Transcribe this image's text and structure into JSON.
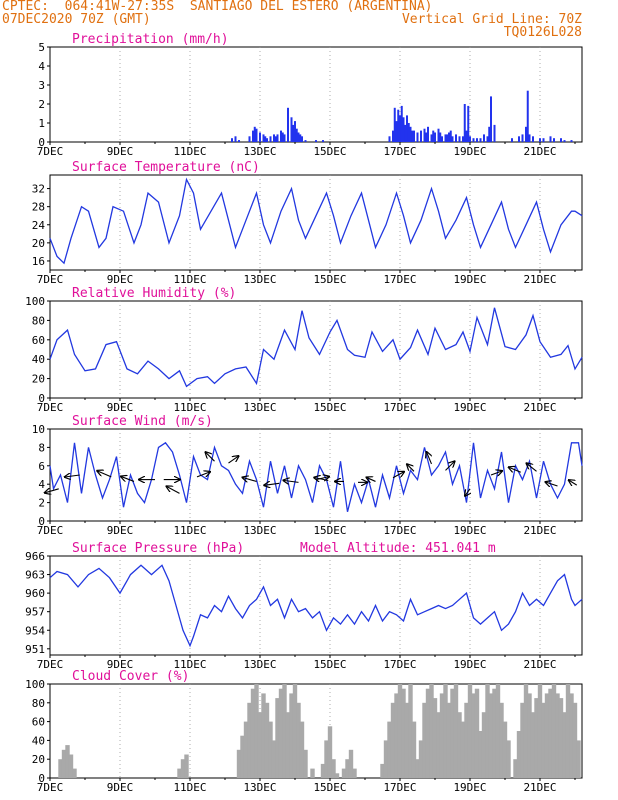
{
  "header": {
    "left_line1": "CPTEC:  064:41W-27:35S  SANTIAGO DEL ESTERO (ARGENTINA)",
    "left_line2": "07DEC2020 70Z (GMT)",
    "right_line2": "Vertical Grid Line: 70Z",
    "right_line3": "TQ0126L028"
  },
  "colors": {
    "header": "#e07010",
    "title": "#e0109a",
    "line": "#2238e0",
    "bar": "#2233ee",
    "cloud": "#a9a9a9",
    "wind_vector": "#000000",
    "grid": "#9a9a9a"
  },
  "chart_data": [
    {
      "id": "precip",
      "type": "bar",
      "title": "Precipitation (mm/h)",
      "x_tick_labels": [
        "7DEC",
        "9DEC",
        "11DEC",
        "13DEC",
        "15DEC",
        "17DEC",
        "19DEC",
        "21DEC"
      ],
      "x_range_days": [
        7.0,
        22.2
      ],
      "ylim": [
        0,
        5
      ],
      "y_ticks": [
        "0",
        "1",
        "2",
        "3",
        "4",
        "5"
      ],
      "x": [
        12.2,
        12.3,
        12.4,
        12.7,
        12.8,
        12.85,
        12.9,
        13.0,
        13.1,
        13.15,
        13.2,
        13.3,
        13.4,
        13.45,
        13.5,
        13.6,
        13.65,
        13.7,
        13.8,
        13.9,
        13.95,
        14.0,
        14.05,
        14.1,
        14.15,
        14.2,
        14.3,
        14.6,
        14.8,
        16.7,
        16.8,
        16.85,
        16.9,
        16.95,
        17.0,
        17.05,
        17.1,
        17.15,
        17.2,
        17.25,
        17.3,
        17.35,
        17.4,
        17.5,
        17.6,
        17.7,
        17.75,
        17.8,
        17.9,
        17.95,
        18.0,
        18.1,
        18.15,
        18.2,
        18.3,
        18.35,
        18.4,
        18.45,
        18.5,
        18.6,
        18.7,
        18.8,
        18.85,
        18.9,
        18.95,
        19.0,
        19.1,
        19.2,
        19.3,
        19.4,
        19.5,
        19.55,
        19.6,
        19.7,
        20.2,
        20.4,
        20.5,
        20.6,
        20.65,
        20.7,
        20.8,
        21.0,
        21.1,
        21.3,
        21.4,
        21.6,
        21.7,
        21.9
      ],
      "values": [
        0.2,
        0.3,
        0.1,
        0.3,
        0.6,
        0.8,
        0.7,
        0.5,
        0.4,
        0.3,
        0.2,
        0.3,
        0.4,
        0.3,
        0.4,
        0.6,
        0.5,
        0.4,
        1.8,
        1.3,
        0.9,
        1.1,
        0.7,
        0.5,
        0.4,
        0.3,
        0.1,
        0.1,
        0.1,
        0.3,
        0.6,
        1.8,
        1.1,
        1.7,
        1.4,
        1.9,
        1.3,
        0.9,
        1.4,
        1.0,
        0.8,
        0.6,
        0.6,
        0.5,
        0.6,
        0.7,
        0.5,
        0.8,
        0.4,
        0.6,
        0.5,
        0.7,
        0.5,
        0.3,
        0.4,
        0.4,
        0.5,
        0.6,
        0.3,
        0.4,
        0.3,
        0.3,
        2.0,
        0.6,
        1.9,
        0.3,
        0.2,
        0.2,
        0.2,
        0.4,
        0.3,
        0.8,
        2.4,
        0.9,
        0.2,
        0.3,
        0.4,
        0.8,
        2.7,
        0.4,
        0.3,
        0.2,
        0.2,
        0.3,
        0.2,
        0.2,
        0.1,
        0.1
      ]
    },
    {
      "id": "temp",
      "type": "line",
      "title": "Surface Temperature (nC)",
      "x_tick_labels": [
        "7DEC",
        "9DEC",
        "11DEC",
        "13DEC",
        "15DEC",
        "17DEC",
        "19DEC",
        "21DEC"
      ],
      "x_range_days": [
        7.0,
        22.2
      ],
      "ylim": [
        14,
        35
      ],
      "y_ticks": [
        "16",
        "20",
        "24",
        "28",
        "32"
      ],
      "x": [
        7.0,
        7.2,
        7.4,
        7.6,
        7.9,
        8.1,
        8.4,
        8.6,
        8.8,
        9.1,
        9.4,
        9.6,
        9.8,
        10.1,
        10.4,
        10.7,
        10.9,
        11.1,
        11.3,
        11.6,
        11.9,
        12.1,
        12.3,
        12.6,
        12.9,
        13.1,
        13.3,
        13.6,
        13.9,
        14.1,
        14.3,
        14.6,
        14.9,
        15.1,
        15.3,
        15.6,
        15.9,
        16.1,
        16.3,
        16.6,
        16.9,
        17.1,
        17.3,
        17.6,
        17.9,
        18.1,
        18.3,
        18.6,
        18.9,
        19.1,
        19.3,
        19.6,
        19.9,
        20.1,
        20.3,
        20.6,
        20.9,
        21.1,
        21.3,
        21.6,
        21.9,
        22.0,
        22.2
      ],
      "values": [
        21,
        17,
        15.5,
        21,
        28,
        27,
        19,
        21,
        28,
        27,
        20,
        24,
        31,
        29,
        20,
        26,
        34,
        31,
        23,
        27,
        31,
        25,
        19,
        25,
        31,
        24,
        20,
        27,
        32,
        25,
        21,
        26,
        31,
        26,
        20,
        26,
        31,
        25,
        19,
        24,
        31,
        26,
        20,
        25,
        32,
        27,
        21,
        25,
        30,
        24,
        19,
        24,
        29,
        23,
        19,
        24,
        29,
        23,
        18,
        24,
        27,
        27,
        26
      ]
    },
    {
      "id": "humidity",
      "type": "line",
      "title": "Relative Humidity (%)",
      "x_tick_labels": [
        "7DEC",
        "9DEC",
        "11DEC",
        "13DEC",
        "15DEC",
        "17DEC",
        "19DEC",
        "21DEC"
      ],
      "x_range_days": [
        7.0,
        22.2
      ],
      "ylim": [
        0,
        100
      ],
      "y_ticks": [
        "0",
        "20",
        "40",
        "60",
        "80",
        "100"
      ],
      "x": [
        7.0,
        7.2,
        7.5,
        7.7,
        8.0,
        8.3,
        8.6,
        8.9,
        9.2,
        9.5,
        9.8,
        10.1,
        10.4,
        10.7,
        10.9,
        11.2,
        11.5,
        11.7,
        12.0,
        12.3,
        12.6,
        12.9,
        13.1,
        13.4,
        13.7,
        14.0,
        14.2,
        14.4,
        14.7,
        15.0,
        15.2,
        15.5,
        15.7,
        16.0,
        16.2,
        16.5,
        16.8,
        17.0,
        17.3,
        17.5,
        17.8,
        18.0,
        18.3,
        18.6,
        18.8,
        19.0,
        19.2,
        19.5,
        19.7,
        20.0,
        20.3,
        20.6,
        20.8,
        21.0,
        21.3,
        21.6,
        21.8,
        22.0,
        22.2
      ],
      "values": [
        40,
        60,
        70,
        45,
        28,
        30,
        55,
        58,
        30,
        25,
        38,
        30,
        20,
        28,
        12,
        20,
        22,
        15,
        25,
        30,
        32,
        15,
        50,
        40,
        70,
        50,
        90,
        62,
        45,
        68,
        80,
        50,
        44,
        42,
        68,
        48,
        60,
        40,
        52,
        70,
        45,
        72,
        50,
        55,
        68,
        48,
        83,
        55,
        93,
        53,
        50,
        65,
        85,
        58,
        42,
        45,
        54,
        30,
        42
      ]
    },
    {
      "id": "wind",
      "type": "line",
      "title": "Surface Wind (m/s)",
      "x_tick_labels": [
        "7DEC",
        "9DEC",
        "11DEC",
        "13DEC",
        "15DEC",
        "17DEC",
        "19DEC",
        "21DEC"
      ],
      "x_range_days": [
        7.0,
        22.2
      ],
      "ylim": [
        0,
        10
      ],
      "y_ticks": [
        "0",
        "2",
        "4",
        "6",
        "8",
        "10"
      ],
      "x": [
        7.0,
        7.1,
        7.3,
        7.5,
        7.7,
        7.9,
        8.1,
        8.3,
        8.5,
        8.7,
        8.9,
        9.1,
        9.3,
        9.5,
        9.7,
        9.9,
        10.1,
        10.3,
        10.5,
        10.7,
        10.9,
        11.1,
        11.3,
        11.5,
        11.7,
        11.9,
        12.1,
        12.3,
        12.5,
        12.7,
        12.9,
        13.1,
        13.3,
        13.5,
        13.7,
        13.9,
        14.1,
        14.3,
        14.5,
        14.7,
        14.9,
        15.1,
        15.3,
        15.5,
        15.7,
        15.9,
        16.1,
        16.3,
        16.5,
        16.7,
        16.9,
        17.1,
        17.3,
        17.5,
        17.7,
        17.9,
        18.1,
        18.3,
        18.5,
        18.7,
        18.9,
        19.1,
        19.3,
        19.5,
        19.7,
        19.9,
        20.1,
        20.3,
        20.5,
        20.7,
        20.9,
        21.1,
        21.3,
        21.5,
        21.7,
        21.9,
        22.1,
        22.2
      ],
      "values": [
        6,
        3.5,
        5,
        2,
        8.5,
        3,
        8,
        5,
        2.5,
        4.5,
        7,
        1.5,
        5,
        3,
        2,
        4.5,
        8,
        8.5,
        7.5,
        5,
        2,
        7,
        5,
        4.5,
        8,
        6,
        5.5,
        4,
        3,
        6.5,
        4.5,
        1.5,
        6.5,
        3,
        6,
        2.5,
        6,
        4.5,
        2,
        6,
        4.5,
        1.5,
        6.5,
        1,
        4,
        2,
        4.5,
        1.5,
        5,
        2.5,
        6,
        3,
        5.5,
        4.5,
        8,
        5,
        6,
        7.5,
        4,
        6,
        2,
        8.5,
        2.5,
        5.5,
        3.5,
        7.5,
        2,
        6,
        4.5,
        6.5,
        2.5,
        6.5,
        4,
        2.5,
        4,
        8.5,
        8.5,
        6
      ],
      "vectors": [
        {
          "x": 7.25,
          "y": 3.5,
          "dx": -14,
          "dy": 4
        },
        {
          "x": 7.85,
          "y": 5.0,
          "dx": -15,
          "dy": 2
        },
        {
          "x": 8.75,
          "y": 4.8,
          "dx": -14,
          "dy": -6
        },
        {
          "x": 9.4,
          "y": 4.3,
          "dx": -13,
          "dy": -5
        },
        {
          "x": 10.0,
          "y": 4.5,
          "dx": -16,
          "dy": 0
        },
        {
          "x": 10.25,
          "y": 4.5,
          "dx": 16,
          "dy": 0
        },
        {
          "x": 10.7,
          "y": 3.0,
          "dx": -13,
          "dy": -7
        },
        {
          "x": 11.2,
          "y": 4.8,
          "dx": 13,
          "dy": -5
        },
        {
          "x": 11.7,
          "y": 6.5,
          "dx": -9,
          "dy": -9
        },
        {
          "x": 12.1,
          "y": 6.3,
          "dx": 10,
          "dy": -7
        },
        {
          "x": 12.9,
          "y": 4.3,
          "dx": -14,
          "dy": -4
        },
        {
          "x": 13.55,
          "y": 4.1,
          "dx": -15,
          "dy": 2
        },
        {
          "x": 14.1,
          "y": 4.2,
          "dx": -15,
          "dy": -2
        },
        {
          "x": 14.6,
          "y": 4.5,
          "dx": 13,
          "dy": -3
        },
        {
          "x": 14.95,
          "y": 4.4,
          "dx": -14,
          "dy": -3
        },
        {
          "x": 15.4,
          "y": 4.3,
          "dx": -9,
          "dy": 0
        },
        {
          "x": 15.8,
          "y": 4.2,
          "dx": 9,
          "dy": 0
        },
        {
          "x": 16.3,
          "y": 4.3,
          "dx": -9,
          "dy": -4
        },
        {
          "x": 16.8,
          "y": 4.7,
          "dx": 11,
          "dy": -6
        },
        {
          "x": 17.4,
          "y": 5.4,
          "dx": -7,
          "dy": -7
        },
        {
          "x": 17.9,
          "y": 6.2,
          "dx": -5,
          "dy": -12
        },
        {
          "x": 18.3,
          "y": 5.5,
          "dx": 9,
          "dy": -9
        },
        {
          "x": 19.0,
          "y": 3.5,
          "dx": -5,
          "dy": 7
        },
        {
          "x": 19.6,
          "y": 5.0,
          "dx": 11,
          "dy": -4
        },
        {
          "x": 20.45,
          "y": 5.3,
          "dx": -12,
          "dy": -5
        },
        {
          "x": 20.9,
          "y": 5.4,
          "dx": -10,
          "dy": -8
        },
        {
          "x": 21.5,
          "y": 3.8,
          "dx": -12,
          "dy": -4
        },
        {
          "x": 22.05,
          "y": 3.9,
          "dx": -8,
          "dy": -5
        }
      ]
    },
    {
      "id": "pressure",
      "type": "line",
      "title": "Surface Pressure (hPa)",
      "subtitle": "Model Altitude: 451.041 m",
      "x_tick_labels": [
        "7DEC",
        "9DEC",
        "11DEC",
        "13DEC",
        "15DEC",
        "17DEC",
        "19DEC",
        "21DEC"
      ],
      "x_range_days": [
        7.0,
        22.2
      ],
      "ylim": [
        950,
        966
      ],
      "y_ticks": [
        "951",
        "954",
        "957",
        "960",
        "963",
        "966"
      ],
      "x": [
        7.0,
        7.2,
        7.5,
        7.8,
        8.1,
        8.4,
        8.7,
        9.0,
        9.3,
        9.6,
        9.9,
        10.2,
        10.4,
        10.6,
        10.8,
        11.0,
        11.1,
        11.3,
        11.5,
        11.7,
        11.9,
        12.1,
        12.3,
        12.5,
        12.7,
        12.9,
        13.1,
        13.3,
        13.5,
        13.7,
        13.9,
        14.1,
        14.3,
        14.5,
        14.7,
        14.9,
        15.1,
        15.3,
        15.5,
        15.7,
        15.9,
        16.1,
        16.3,
        16.5,
        16.7,
        16.9,
        17.1,
        17.3,
        17.5,
        17.7,
        17.9,
        18.1,
        18.3,
        18.5,
        18.7,
        18.9,
        19.1,
        19.3,
        19.5,
        19.7,
        19.9,
        20.1,
        20.3,
        20.5,
        20.7,
        20.9,
        21.1,
        21.3,
        21.5,
        21.7,
        21.9,
        22.0,
        22.2
      ],
      "values": [
        962.5,
        963.5,
        963,
        961,
        963,
        964,
        962.5,
        960,
        963,
        964.5,
        963,
        964.5,
        962,
        958,
        954,
        951.5,
        953,
        956.5,
        956,
        958,
        957,
        959.5,
        957.5,
        956,
        958,
        959,
        961,
        958,
        959,
        956,
        959,
        957,
        957.5,
        956,
        957,
        954,
        956,
        955,
        956.5,
        955,
        957,
        955.5,
        958,
        955.5,
        957,
        956.5,
        955.5,
        959,
        956.5,
        957,
        957.5,
        958,
        957.5,
        958,
        959,
        960,
        956,
        955,
        956,
        957,
        954,
        955,
        957,
        960,
        958,
        959,
        958,
        960,
        962,
        963,
        959,
        958,
        959
      ]
    },
    {
      "id": "cloud",
      "type": "area",
      "title": "Cloud Cover (%)",
      "x_tick_labels": [
        "7DEC",
        "9DEC",
        "11DEC",
        "13DEC",
        "15DEC",
        "17DEC",
        "19DEC",
        "21DEC"
      ],
      "x_range_days": [
        7.0,
        22.2
      ],
      "ylim": [
        0,
        100
      ],
      "y_ticks": [
        "0",
        "20",
        "40",
        "60",
        "80",
        "100"
      ],
      "x": [
        7.0,
        7.2,
        7.3,
        7.4,
        7.5,
        7.6,
        7.7,
        7.9,
        10.6,
        10.7,
        10.8,
        10.9,
        11.0,
        12.3,
        12.4,
        12.5,
        12.6,
        12.7,
        12.8,
        12.9,
        13.0,
        13.1,
        13.2,
        13.3,
        13.4,
        13.5,
        13.6,
        13.7,
        13.8,
        13.9,
        14.0,
        14.1,
        14.2,
        14.3,
        14.4,
        14.5,
        14.6,
        14.7,
        14.8,
        14.9,
        15.0,
        15.1,
        15.2,
        15.3,
        15.4,
        15.5,
        15.6,
        15.7,
        15.8,
        15.9,
        16.0,
        16.2,
        16.4,
        16.5,
        16.6,
        16.7,
        16.8,
        16.9,
        17.0,
        17.1,
        17.2,
        17.3,
        17.4,
        17.5,
        17.6,
        17.7,
        17.8,
        17.9,
        18.0,
        18.1,
        18.2,
        18.3,
        18.4,
        18.5,
        18.6,
        18.7,
        18.8,
        18.9,
        19.0,
        19.1,
        19.2,
        19.3,
        19.4,
        19.5,
        19.6,
        19.7,
        19.8,
        19.9,
        20.0,
        20.1,
        20.2,
        20.3,
        20.4,
        20.5,
        20.6,
        20.7,
        20.8,
        20.9,
        21.0,
        21.1,
        21.2,
        21.3,
        21.4,
        21.5,
        21.6,
        21.7,
        21.8,
        21.9,
        22.0,
        22.1,
        22.2
      ],
      "values": [
        0,
        0,
        20,
        30,
        35,
        25,
        10,
        0,
        0,
        10,
        20,
        25,
        0,
        0,
        30,
        45,
        60,
        80,
        95,
        100,
        70,
        90,
        80,
        60,
        40,
        85,
        95,
        100,
        70,
        90,
        100,
        80,
        60,
        30,
        0,
        10,
        0,
        0,
        15,
        40,
        55,
        20,
        5,
        0,
        10,
        20,
        30,
        10,
        0,
        0,
        0,
        0,
        0,
        15,
        40,
        60,
        80,
        90,
        100,
        95,
        80,
        100,
        60,
        20,
        40,
        80,
        95,
        100,
        85,
        70,
        90,
        100,
        80,
        95,
        100,
        70,
        60,
        80,
        100,
        90,
        95,
        50,
        70,
        100,
        90,
        95,
        100,
        80,
        60,
        40,
        0,
        20,
        50,
        80,
        100,
        90,
        70,
        85,
        100,
        80,
        90,
        95,
        100,
        90,
        85,
        70,
        100,
        90,
        80,
        40,
        0
      ]
    }
  ]
}
